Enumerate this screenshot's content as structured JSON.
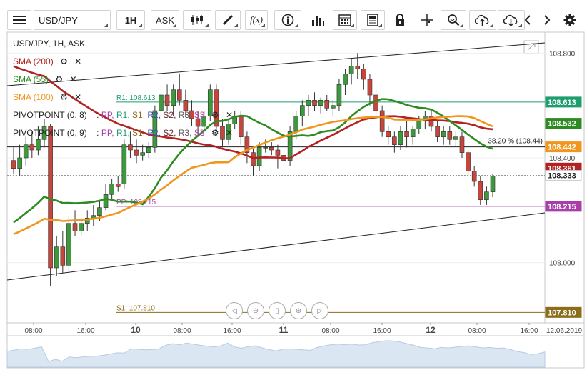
{
  "toolbar": {
    "symbol": "USD/JPY",
    "timeframe": "1H",
    "price_type": "ASK",
    "fx_label": "f(x)"
  },
  "chart_info": {
    "title": "USD/JPY, 1H, ASK"
  },
  "indicators": [
    {
      "label": "SMA (200)",
      "color": "#b22222"
    },
    {
      "label": "SMA (55)",
      "color": "#2e8b22"
    },
    {
      "label": "SMA (100)",
      "color": "#f0961e"
    }
  ],
  "pivots": [
    {
      "name": "PIVOTPOINT (0, 8)",
      "levels": [
        "PP,",
        "R1,",
        "S1,",
        "R2,",
        "S2,",
        "R3,",
        "S3"
      ]
    },
    {
      "name": "PIVOTPOINT (0, 9)",
      "levels": [
        "PP,",
        "R1,",
        "S1,",
        "R2,",
        "S2,",
        "R3,",
        "S3"
      ]
    }
  ],
  "level_labels": {
    "r1": "R1: 108.613",
    "pp": "PP: 108.215",
    "s1": "S1: 107.810",
    "fib": "38.20 % (108.44)"
  },
  "price_axis": {
    "ticks": [
      "108.800",
      "108.400",
      "108.000"
    ],
    "tags": [
      {
        "value": "108.613",
        "bg": "#1e9e6e"
      },
      {
        "value": "108.532",
        "bg": "#2e8b22"
      },
      {
        "value": "108.442",
        "bg": "#f0961e"
      },
      {
        "value": "108.361",
        "bg": "#b22222"
      },
      {
        "value": "108.333",
        "bg": "#ffffff"
      },
      {
        "value": "108.215",
        "bg": "#a83ea8"
      },
      {
        "value": "107.810",
        "bg": "#8b6d1a"
      }
    ]
  },
  "time_axis": {
    "labels": [
      "08:00",
      "16:00",
      "10",
      "08:00",
      "16:00",
      "11",
      "08:00",
      "16:00",
      "12",
      "08:00",
      "16:00"
    ],
    "date": "12.06.2019"
  },
  "chart_data": {
    "type": "candlestick",
    "title": "USD/JPY, 1H, ASK",
    "ylim": [
      107.77,
      108.88
    ],
    "candles": [
      [
        108.39,
        108.44,
        108.34,
        108.36
      ],
      [
        108.36,
        108.45,
        108.33,
        108.4
      ],
      [
        108.4,
        108.48,
        108.37,
        108.45
      ],
      [
        108.45,
        108.5,
        108.4,
        108.43
      ],
      [
        108.43,
        108.52,
        108.41,
        108.47
      ],
      [
        108.47,
        108.55,
        108.44,
        108.52
      ],
      [
        108.52,
        108.53,
        107.91,
        107.98
      ],
      [
        107.98,
        108.1,
        107.95,
        108.06
      ],
      [
        108.06,
        108.12,
        107.96,
        107.99
      ],
      [
        107.99,
        108.18,
        107.97,
        108.15
      ],
      [
        108.15,
        108.2,
        108.1,
        108.12
      ],
      [
        108.12,
        108.17,
        108.1,
        108.15
      ],
      [
        108.15,
        108.2,
        108.12,
        108.17
      ],
      [
        108.17,
        108.22,
        108.14,
        108.18
      ],
      [
        108.18,
        108.24,
        108.16,
        108.21
      ],
      [
        108.21,
        108.3,
        108.2,
        108.26
      ],
      [
        108.26,
        108.32,
        108.24,
        108.3
      ],
      [
        108.3,
        108.33,
        108.27,
        108.29
      ],
      [
        108.3,
        108.47,
        108.28,
        108.45
      ],
      [
        108.45,
        108.5,
        108.4,
        108.43
      ],
      [
        108.43,
        108.47,
        108.38,
        108.41
      ],
      [
        108.41,
        108.45,
        108.39,
        108.42
      ],
      [
        108.42,
        108.46,
        108.4,
        108.44
      ],
      [
        108.44,
        108.6,
        108.42,
        108.58
      ],
      [
        108.58,
        108.66,
        108.54,
        108.64
      ],
      [
        108.64,
        108.68,
        108.58,
        108.6
      ],
      [
        108.6,
        108.68,
        108.56,
        108.66
      ],
      [
        108.66,
        108.72,
        108.6,
        108.62
      ],
      [
        108.62,
        108.66,
        108.56,
        108.58
      ],
      [
        108.58,
        108.62,
        108.52,
        108.55
      ],
      [
        108.55,
        108.58,
        108.48,
        108.52
      ],
      [
        108.52,
        108.58,
        108.5,
        108.56
      ],
      [
        108.56,
        108.68,
        108.54,
        108.66
      ],
      [
        108.66,
        108.68,
        108.5,
        108.52
      ],
      [
        108.52,
        108.55,
        108.44,
        108.47
      ],
      [
        108.47,
        108.55,
        108.45,
        108.53
      ],
      [
        108.53,
        108.58,
        108.51,
        108.56
      ],
      [
        108.56,
        108.58,
        108.45,
        108.48
      ],
      [
        108.48,
        108.5,
        108.38,
        108.42
      ],
      [
        108.42,
        108.44,
        108.33,
        108.37
      ],
      [
        108.37,
        108.46,
        108.35,
        108.44
      ],
      [
        108.44,
        108.47,
        108.42,
        108.44
      ],
      [
        108.44,
        108.46,
        108.41,
        108.43
      ],
      [
        108.43,
        108.45,
        108.36,
        108.41
      ],
      [
        108.41,
        108.43,
        108.37,
        108.39
      ],
      [
        108.39,
        108.52,
        108.37,
        108.5
      ],
      [
        108.5,
        108.58,
        108.47,
        108.56
      ],
      [
        108.56,
        108.62,
        108.52,
        108.6
      ],
      [
        108.6,
        108.64,
        108.56,
        108.62
      ],
      [
        108.62,
        108.65,
        108.58,
        108.6
      ],
      [
        108.6,
        108.63,
        108.57,
        108.62
      ],
      [
        108.62,
        108.64,
        108.58,
        108.59
      ],
      [
        108.59,
        108.62,
        108.56,
        108.6
      ],
      [
        108.6,
        108.7,
        108.58,
        108.68
      ],
      [
        108.68,
        108.74,
        108.64,
        108.72
      ],
      [
        108.72,
        108.78,
        108.68,
        108.75
      ],
      [
        108.75,
        108.8,
        108.7,
        108.74
      ],
      [
        108.74,
        108.76,
        108.66,
        108.7
      ],
      [
        108.7,
        108.72,
        108.6,
        108.64
      ],
      [
        108.64,
        108.66,
        108.55,
        108.58
      ],
      [
        108.58,
        108.6,
        108.48,
        108.5
      ],
      [
        108.5,
        108.52,
        108.45,
        108.48
      ],
      [
        108.48,
        108.5,
        108.42,
        108.45
      ],
      [
        108.45,
        108.52,
        108.43,
        108.5
      ],
      [
        108.5,
        108.54,
        108.44,
        108.48
      ],
      [
        108.48,
        108.52,
        108.45,
        108.51
      ],
      [
        108.51,
        108.56,
        108.49,
        108.54
      ],
      [
        108.54,
        108.58,
        108.51,
        108.56
      ],
      [
        108.56,
        108.58,
        108.5,
        108.52
      ],
      [
        108.52,
        108.54,
        108.46,
        108.48
      ],
      [
        108.48,
        108.52,
        108.45,
        108.5
      ],
      [
        108.5,
        108.52,
        108.45,
        108.47
      ],
      [
        108.47,
        108.5,
        108.44,
        108.48
      ],
      [
        108.48,
        108.5,
        108.4,
        108.42
      ],
      [
        108.42,
        108.43,
        108.33,
        108.35
      ],
      [
        108.35,
        108.37,
        108.29,
        108.31
      ],
      [
        108.31,
        108.33,
        108.22,
        108.24
      ],
      [
        108.24,
        108.29,
        108.22,
        108.27
      ],
      [
        108.27,
        108.34,
        108.25,
        108.33
      ]
    ],
    "price_ticks": [
      108.8,
      108.4,
      108.0
    ]
  }
}
